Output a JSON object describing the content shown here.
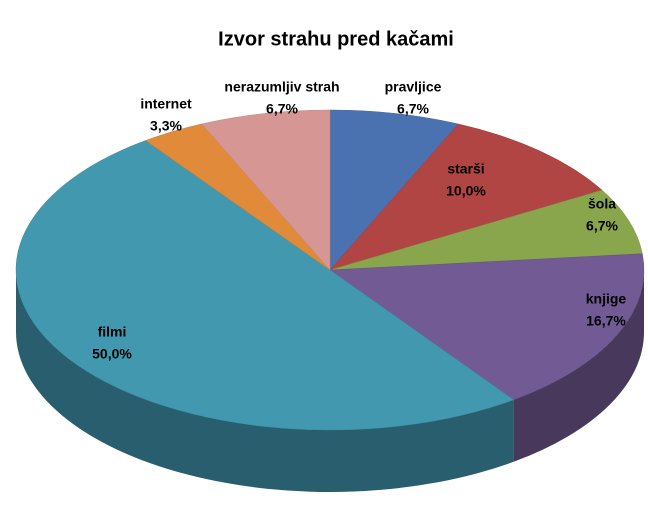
{
  "chart_data": {
    "type": "pie3d",
    "title": "Izvor strahu pred kačami",
    "categories": [
      "pravljice",
      "starši",
      "šola",
      "knjige",
      "filmi",
      "internet",
      "nerazumljiv strah"
    ],
    "values": [
      6.7,
      10.0,
      6.7,
      16.7,
      50.0,
      3.3,
      6.7
    ],
    "value_labels": [
      "6,7%",
      "10,0%",
      "6,7%",
      "16,7%",
      "50,0%",
      "3,3%",
      "6,7%"
    ],
    "colors": [
      "#4a72b0",
      "#b04543",
      "#8aa64c",
      "#725a95",
      "#4198af",
      "#e08a3a",
      "#d59694"
    ]
  }
}
